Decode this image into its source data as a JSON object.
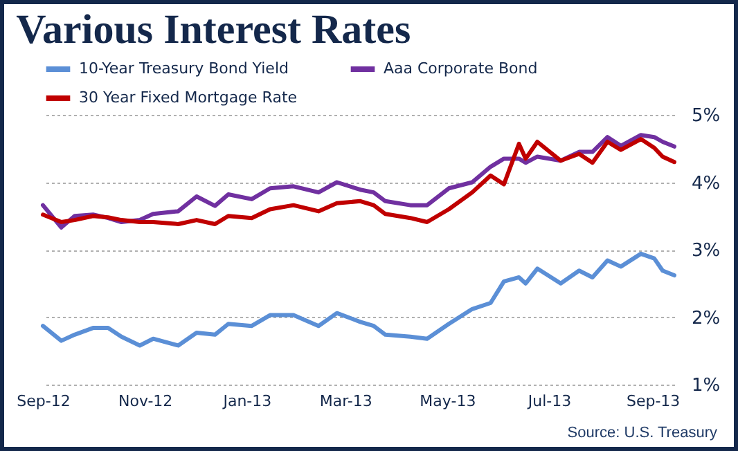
{
  "chart_data": {
    "type": "line",
    "title": "Various Interest Rates",
    "x": [
      "2012-09-01",
      "2012-09-12",
      "2012-09-20",
      "2012-10-01",
      "2012-10-10",
      "2012-10-18",
      "2012-10-29",
      "2012-11-06",
      "2012-11-21",
      "2012-12-02",
      "2012-12-13",
      "2012-12-21",
      "2013-01-04",
      "2013-01-15",
      "2013-01-29",
      "2013-02-13",
      "2013-02-24",
      "2013-03-10",
      "2013-03-18",
      "2013-03-25",
      "2013-04-09",
      "2013-04-19",
      "2013-05-02",
      "2013-05-16",
      "2013-05-27",
      "2013-06-04",
      "2013-06-13",
      "2013-06-17",
      "2013-06-24",
      "2013-07-08",
      "2013-07-19",
      "2013-07-27",
      "2013-08-05",
      "2013-08-13",
      "2013-08-25",
      "2013-09-02",
      "2013-09-07",
      "2013-09-14"
    ],
    "series": [
      {
        "name": "10-Year Treasury Bond Yield",
        "color": "#5b8fd6",
        "values": [
          1.87,
          1.65,
          1.74,
          1.84,
          1.84,
          1.71,
          1.58,
          1.68,
          1.58,
          1.77,
          1.74,
          1.9,
          1.87,
          2.03,
          2.03,
          1.87,
          2.06,
          1.93,
          1.87,
          1.74,
          1.71,
          1.68,
          1.9,
          2.12,
          2.21,
          2.53,
          2.59,
          2.5,
          2.72,
          2.5,
          2.69,
          2.59,
          2.84,
          2.75,
          2.94,
          2.87,
          2.69,
          2.62
        ]
      },
      {
        "name": "Aaa Corporate Bond",
        "color": "#7030a0",
        "values": [
          3.66,
          3.33,
          3.5,
          3.52,
          3.47,
          3.41,
          3.44,
          3.53,
          3.57,
          3.79,
          3.65,
          3.82,
          3.75,
          3.91,
          3.94,
          3.85,
          4.0,
          3.89,
          3.85,
          3.72,
          3.66,
          3.66,
          3.91,
          4.0,
          4.23,
          4.35,
          4.35,
          4.29,
          4.38,
          4.32,
          4.45,
          4.45,
          4.67,
          4.54,
          4.7,
          4.67,
          4.6,
          4.53
        ]
      },
      {
        "name": "30 Year Fixed Mortgage Rate",
        "color": "#c00000",
        "values": [
          3.52,
          3.41,
          3.44,
          3.5,
          3.48,
          3.44,
          3.41,
          3.41,
          3.38,
          3.44,
          3.38,
          3.5,
          3.47,
          3.6,
          3.66,
          3.57,
          3.69,
          3.72,
          3.66,
          3.53,
          3.47,
          3.41,
          3.6,
          3.85,
          4.1,
          3.97,
          4.57,
          4.35,
          4.6,
          4.32,
          4.42,
          4.29,
          4.6,
          4.48,
          4.64,
          4.51,
          4.38,
          4.3
        ]
      }
    ],
    "xlim": [
      "2012-09-01",
      "2013-09-14"
    ],
    "xticks": [
      {
        "value": "2012-09-01",
        "label": "Sep-12"
      },
      {
        "value": "2012-11-01",
        "label": "Nov-12"
      },
      {
        "value": "2013-01-01",
        "label": "Jan-13"
      },
      {
        "value": "2013-03-01",
        "label": "Mar-13"
      },
      {
        "value": "2013-05-01",
        "label": "May-13"
      },
      {
        "value": "2013-07-01",
        "label": "Jul-13"
      },
      {
        "value": "2013-09-01",
        "label": "Sep-13"
      }
    ],
    "ylim": [
      1,
      5
    ],
    "yticks": [
      {
        "value": 1,
        "label": "1%"
      },
      {
        "value": 2,
        "label": "2%"
      },
      {
        "value": 3,
        "label": "3%"
      },
      {
        "value": 4,
        "label": "4%"
      },
      {
        "value": 5,
        "label": "5%"
      }
    ],
    "grid": "y",
    "legend": "top",
    "marker": "none",
    "line_style": "solid",
    "annotations": [
      "Source: U.S. Treasury"
    ]
  }
}
